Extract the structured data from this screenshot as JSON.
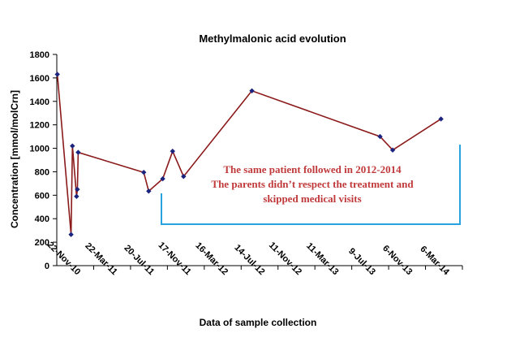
{
  "chart_data": {
    "type": "line",
    "title": "Methylmalonic acid evolution",
    "xlabel": "Data of sample collection",
    "ylabel": "Concentration [mmol/molCrn]",
    "ylim": [
      0,
      1800
    ],
    "yticks": [
      0,
      200,
      400,
      600,
      800,
      1000,
      1200,
      1400,
      1600,
      1800
    ],
    "xtick_labels": [
      "22-Nov-10",
      "22-Mar-11",
      "20-Jul-11",
      "17-Nov-11",
      "16-Mar-12",
      "14-Jul-12",
      "11-Nov-12",
      "11-Mar-13",
      "9-Jul-13",
      "6-Nov-13",
      "6-Mar-14"
    ],
    "xlim": [
      "2010-07-15",
      "2014-08-01"
    ],
    "grid": false,
    "series": [
      {
        "color": "#8b1a1a",
        "marker_color": "#1a237e",
        "points": [
          {
            "x": "2010-07-17",
            "y": 1630
          },
          {
            "x": "2010-09-05",
            "y": 265
          },
          {
            "x": "2010-09-10",
            "y": 1020
          },
          {
            "x": "2010-09-25",
            "y": 590
          },
          {
            "x": "2010-09-28",
            "y": 650
          },
          {
            "x": "2010-10-01",
            "y": 965
          },
          {
            "x": "2011-05-28",
            "y": 795
          },
          {
            "x": "2011-06-15",
            "y": 635
          },
          {
            "x": "2011-08-05",
            "y": 740
          },
          {
            "x": "2011-09-10",
            "y": 975
          },
          {
            "x": "2011-10-20",
            "y": 760
          },
          {
            "x": "2012-06-25",
            "y": 1490
          },
          {
            "x": "2013-10-05",
            "y": 1100
          },
          {
            "x": "2013-11-20",
            "y": 985
          },
          {
            "x": "2014-05-15",
            "y": 1250
          }
        ]
      }
    ],
    "annotations": {
      "lines": [
        "The same patient followed in 2012-2014",
        "The parents didn’t respect the treatment and",
        "skipped medical visits"
      ],
      "bracket_color": "#29a3e0"
    }
  }
}
